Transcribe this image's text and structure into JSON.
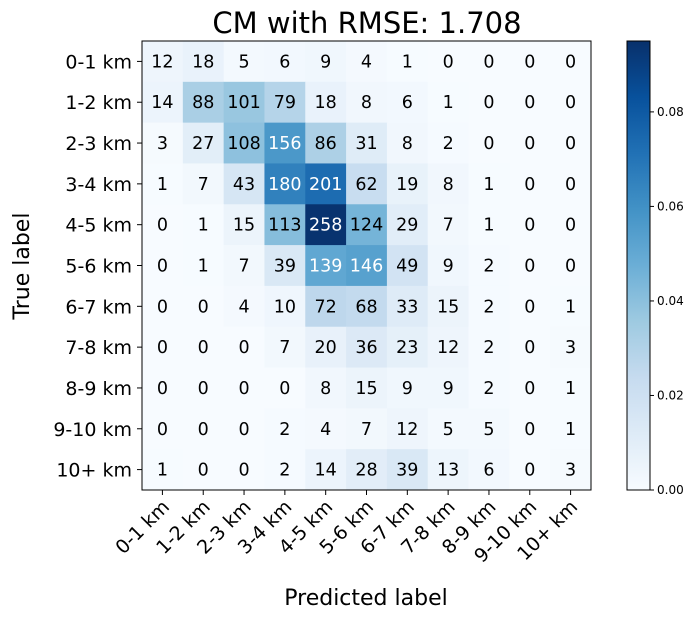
{
  "chart_data": {
    "type": "heatmap",
    "title": "CM with RMSE: 1.708",
    "xlabel": "Predicted label",
    "ylabel": "True label",
    "x_categories": [
      "0-1 km",
      "1-2 km",
      "2-3 km",
      "3-4 km",
      "4-5 km",
      "5-6 km",
      "6-7 km",
      "7-8 km",
      "8-9 km",
      "9-10 km",
      "10+ km"
    ],
    "y_categories": [
      "0-1 km",
      "1-2 km",
      "2-3 km",
      "3-4 km",
      "4-5 km",
      "5-6 km",
      "6-7 km",
      "7-8 km",
      "8-9 km",
      "9-10 km",
      "10+ km"
    ],
    "values": [
      [
        12,
        18,
        5,
        6,
        9,
        4,
        1,
        0,
        0,
        0,
        0
      ],
      [
        14,
        88,
        101,
        79,
        18,
        8,
        6,
        1,
        0,
        0,
        0
      ],
      [
        3,
        27,
        108,
        156,
        86,
        31,
        8,
        2,
        0,
        0,
        0
      ],
      [
        1,
        7,
        43,
        180,
        201,
        62,
        19,
        8,
        1,
        0,
        0
      ],
      [
        0,
        1,
        15,
        113,
        258,
        124,
        29,
        7,
        1,
        0,
        0
      ],
      [
        0,
        1,
        7,
        39,
        139,
        146,
        49,
        9,
        2,
        0,
        0
      ],
      [
        0,
        0,
        4,
        10,
        72,
        68,
        33,
        15,
        2,
        0,
        1
      ],
      [
        0,
        0,
        0,
        7,
        20,
        36,
        23,
        12,
        2,
        0,
        3
      ],
      [
        0,
        0,
        0,
        0,
        8,
        15,
        9,
        9,
        2,
        0,
        1
      ],
      [
        0,
        0,
        0,
        2,
        4,
        7,
        12,
        5,
        5,
        0,
        1
      ],
      [
        1,
        0,
        0,
        2,
        14,
        28,
        39,
        13,
        6,
        0,
        3
      ]
    ],
    "colormap": "Blues",
    "colorbar": {
      "range": [
        0.0,
        0.095
      ],
      "ticks": [
        "0.00",
        "0.02",
        "0.04",
        "0.06",
        "0.08"
      ],
      "tick_values": [
        0.0,
        0.02,
        0.04,
        0.06,
        0.08
      ]
    },
    "grid": false
  }
}
